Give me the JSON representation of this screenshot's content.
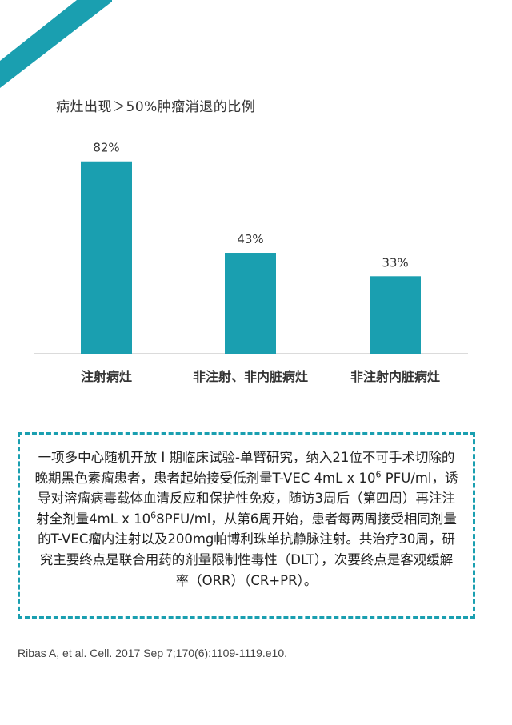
{
  "colors": {
    "accent": "#1a9fb0",
    "bar": "#1a9fb0",
    "text": "#333333"
  },
  "chart_data": {
    "type": "bar",
    "title": "病灶出现＞50%肿瘤消退的比例",
    "categories": [
      "注射病灶",
      "非注射、非内脏病灶",
      "非注射内脏病灶"
    ],
    "values": [
      82,
      43,
      33
    ],
    "value_labels": [
      "82%",
      "43%",
      "33%"
    ],
    "ylim": [
      0,
      100
    ],
    "grid": false,
    "legend": "none"
  },
  "description": {
    "p1": "一项多中心随机开放 I 期临床试验-单臂研究，纳入21位不可手术切除的晚期黑色素瘤患者，患者起始接受低剂量T-VEC 4mL x 10",
    "sup1": "6",
    "p2": " PFU/ml，诱导对溶瘤病毒载体血清反应和保护性免疫，随访3周后（第四周）再注注射全剂量4mL x 10",
    "sup2": "6",
    "p3": "8PFU/ml，从第6周开始，患者每两周接受相同剂量的T-VEC瘤内注射以及200mg帕博利珠单抗静脉注射。共治疗30周，研究主要终点是联合用药的剂量限制性毒性（DLT），次要终点是客观缓解率（ORR）（CR+PR）。"
  },
  "citation": "Ribas A, et al. Cell. 2017 Sep 7;170(6):1109-1119.e10."
}
